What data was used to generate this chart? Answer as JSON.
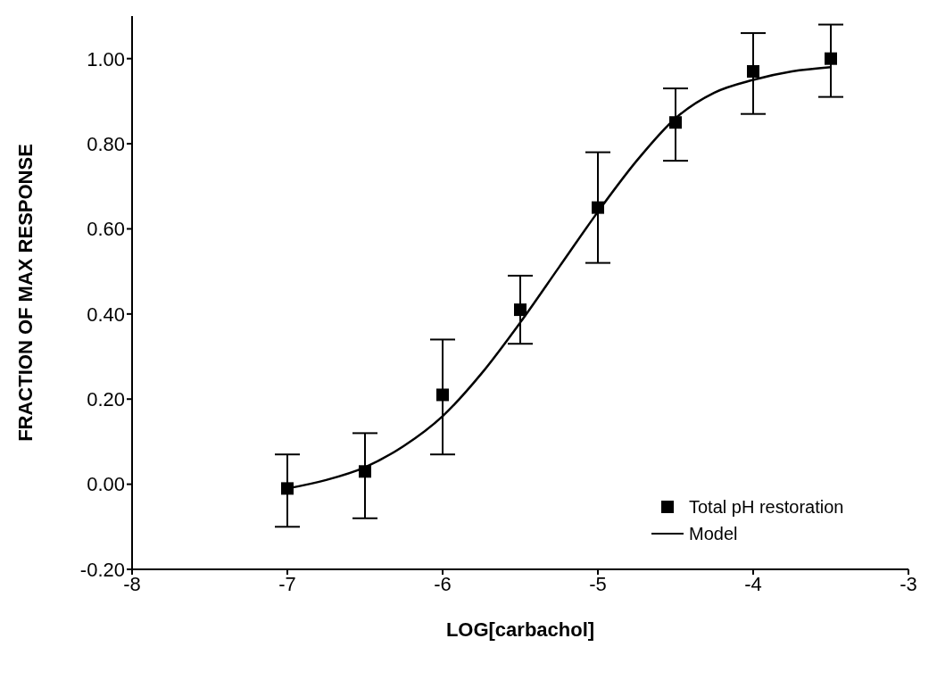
{
  "chart_data": {
    "type": "scatter",
    "xlabel": "LOG[carbachol]",
    "ylabel": "FRACTION OF MAX RESPONSE",
    "xlim": [
      -8,
      -3
    ],
    "xticks": [
      -8,
      -7,
      -6,
      -5,
      -4,
      -3
    ],
    "ylim": [
      -0.2,
      1.1
    ],
    "yticks": [
      {
        "value": -0.2,
        "label": "-0.20"
      },
      {
        "value": 0,
        "label": "0.00"
      },
      {
        "value": 0.2,
        "label": "0.20"
      },
      {
        "value": 0.4,
        "label": "0.40"
      },
      {
        "value": 0.6,
        "label": "0.60"
      },
      {
        "value": 0.8,
        "label": "0.80"
      },
      {
        "value": 1.0,
        "label": "1.00"
      }
    ],
    "grid": false,
    "legend": "bottom right",
    "series": [
      {
        "name": "Total pH restoration",
        "marker": "square",
        "color": "#000000",
        "x": [
          -7,
          -6.5,
          -6,
          -5.5,
          -5,
          -4.5,
          -4,
          -3.5
        ],
        "values": [
          -0.01,
          0.03,
          0.21,
          0.41,
          0.65,
          0.85,
          0.97,
          1.0
        ],
        "errors": [
          [
            -0.1,
            0.07
          ],
          [
            -0.08,
            0.12
          ],
          [
            0.07,
            0.34
          ],
          [
            0.33,
            0.49
          ],
          [
            0.52,
            0.78
          ],
          [
            0.76,
            0.93
          ],
          [
            0.87,
            1.06
          ],
          [
            0.91,
            1.08
          ]
        ]
      },
      {
        "name": "Model",
        "type": "line",
        "marker": "none",
        "line_style": "solid",
        "color": "#000000",
        "x": [
          -7,
          -6.75,
          -6.5,
          -6.25,
          -6,
          -5.75,
          -5.5,
          -5.25,
          -5,
          -4.75,
          -4.5,
          -4.25,
          -4,
          -3.75,
          -3.5
        ],
        "values": [
          -0.01,
          0.01,
          0.04,
          0.09,
          0.16,
          0.26,
          0.38,
          0.51,
          0.64,
          0.76,
          0.86,
          0.92,
          0.95,
          0.97,
          0.98
        ]
      }
    ]
  }
}
